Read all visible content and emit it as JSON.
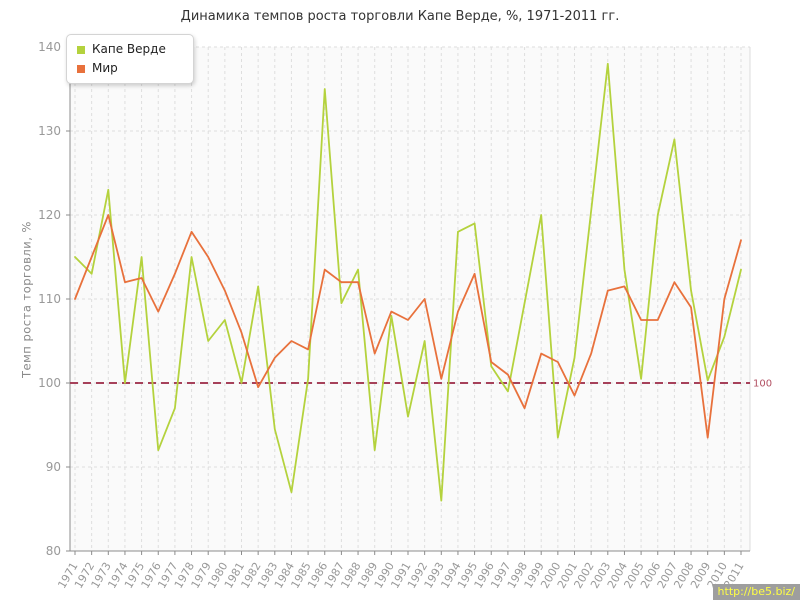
{
  "chart_data": {
    "type": "line",
    "title": "Динамика темпов роста торговли Капе Верде, %, 1971-2011 гг.",
    "xlabel": "",
    "ylabel": "Темп роста торговли, %",
    "ylim": [
      80,
      140
    ],
    "yticks": [
      80,
      90,
      100,
      110,
      120,
      130,
      140
    ],
    "grid": true,
    "legend_position": "top-left",
    "plot_bg": "#fafafa",
    "grid_color": "#dedede",
    "axis_color": "#8c8c8c",
    "tick_label_color": "#999999",
    "baseline": {
      "value": 100,
      "label": "100",
      "color": "#a6415a",
      "label_color": "#b25163"
    },
    "categories": [
      "1971",
      "1972",
      "1973",
      "1974",
      "1975",
      "1976",
      "1977",
      "1978",
      "1979",
      "1980",
      "1981",
      "1982",
      "1983",
      "1984",
      "1985",
      "1986",
      "1987",
      "1988",
      "1989",
      "1990",
      "1991",
      "1992",
      "1993",
      "1994",
      "1995",
      "1996",
      "1997",
      "1998",
      "1999",
      "2000",
      "2001",
      "2002",
      "2003",
      "2004",
      "2005",
      "2006",
      "2007",
      "2008",
      "2009",
      "2010",
      "2011"
    ],
    "series": [
      {
        "name": "Капе Верде",
        "color": "#b4d23d",
        "values": [
          115,
          113,
          123,
          100,
          115,
          92,
          97,
          115,
          105,
          107.5,
          100,
          111.5,
          94.5,
          87,
          100.5,
          135,
          109.5,
          113.5,
          92,
          108,
          96,
          105,
          86,
          118,
          119,
          102,
          99,
          109.5,
          120,
          93.5,
          103,
          120.5,
          138,
          113.5,
          100.5,
          120,
          129,
          111,
          100.3,
          105.5,
          113.5
        ]
      },
      {
        "name": "Мир",
        "color": "#e8713c",
        "values": [
          110,
          115,
          120,
          112,
          112.5,
          108.5,
          113,
          118,
          115,
          111,
          106,
          99.5,
          103,
          105,
          104,
          113.5,
          112,
          112,
          103.5,
          108.5,
          107.5,
          110,
          100.5,
          108.5,
          113,
          102.5,
          101,
          97,
          103.5,
          102.5,
          98.5,
          103.5,
          111,
          111.5,
          107.5,
          107.5,
          112,
          109,
          93.5,
          110,
          117
        ]
      }
    ]
  },
  "watermark": {
    "text": "http://be5.biz/",
    "bg": "#9e9e9e",
    "color": "#ffff44"
  }
}
